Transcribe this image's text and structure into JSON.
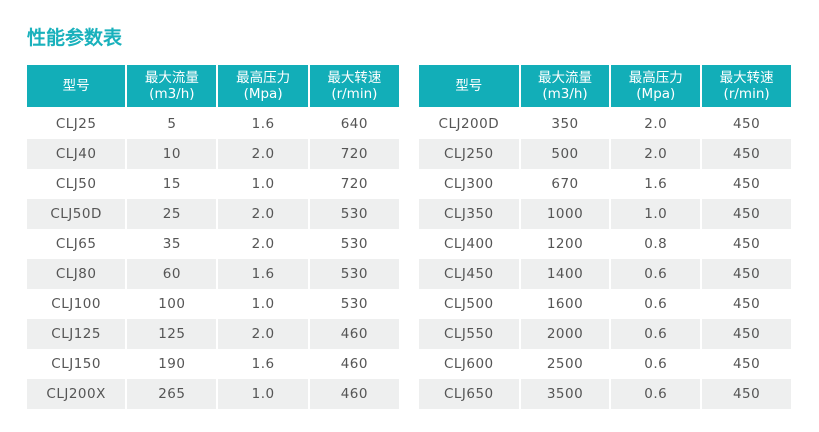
{
  "title": "性能参数表",
  "headers": [
    {
      "l1": "型号",
      "l2": ""
    },
    {
      "l1": "最大流量",
      "l2": "(m3/h)"
    },
    {
      "l1": "最高压力",
      "l2": "(Mpa)"
    },
    {
      "l1": "最大转速",
      "l2": "(r/min)"
    }
  ],
  "left_rows": [
    [
      "CLJ25",
      "5",
      "1.6",
      "640"
    ],
    [
      "CLJ40",
      "10",
      "2.0",
      "720"
    ],
    [
      "CLJ50",
      "15",
      "1.0",
      "720"
    ],
    [
      "CLJ50D",
      "25",
      "2.0",
      "530"
    ],
    [
      "CLJ65",
      "35",
      "2.0",
      "530"
    ],
    [
      "CLJ80",
      "60",
      "1.6",
      "530"
    ],
    [
      "CLJ100",
      "100",
      "1.0",
      "530"
    ],
    [
      "CLJ125",
      "125",
      "2.0",
      "460"
    ],
    [
      "CLJ150",
      "190",
      "1.6",
      "460"
    ],
    [
      "CLJ200X",
      "265",
      "1.0",
      "460"
    ]
  ],
  "right_rows": [
    [
      "CLJ200D",
      "350",
      "2.0",
      "450"
    ],
    [
      "CLJ250",
      "500",
      "2.0",
      "450"
    ],
    [
      "CLJ300",
      "670",
      "1.6",
      "450"
    ],
    [
      "CLJ350",
      "1000",
      "1.0",
      "450"
    ],
    [
      "CLJ400",
      "1200",
      "0.8",
      "450"
    ],
    [
      "CLJ450",
      "1400",
      "0.6",
      "450"
    ],
    [
      "CLJ500",
      "1600",
      "0.6",
      "450"
    ],
    [
      "CLJ550",
      "2000",
      "0.6",
      "450"
    ],
    [
      "CLJ600",
      "2500",
      "0.6",
      "450"
    ],
    [
      "CLJ650",
      "3500",
      "0.6",
      "450"
    ]
  ],
  "colors": {
    "accent": "#12aeb8",
    "stripe": "#eeefef"
  }
}
